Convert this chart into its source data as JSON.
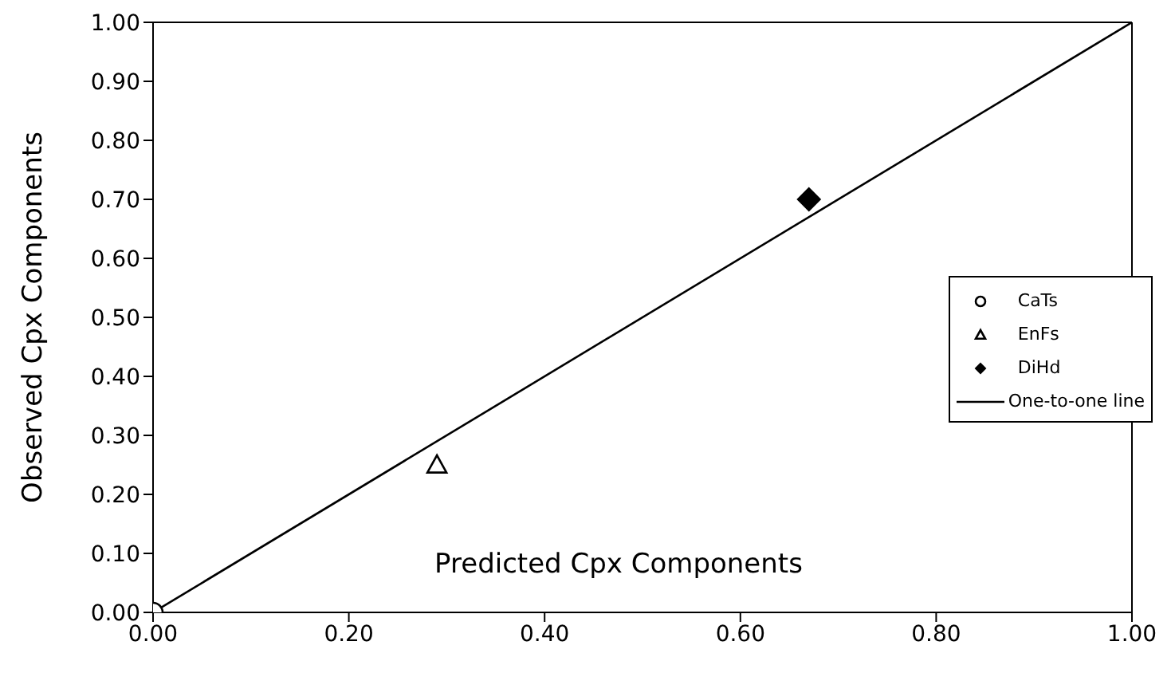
{
  "chart_data": {
    "type": "scatter",
    "xlabel": "Predicted Cpx Components",
    "ylabel": "Observed Cpx Components",
    "xlim": [
      0,
      1
    ],
    "ylim": [
      0,
      1
    ],
    "xticks": [
      {
        "value": 0,
        "label": "0.00"
      },
      {
        "value": 0.2,
        "label": "0.20"
      },
      {
        "value": 0.4,
        "label": "0.40"
      },
      {
        "value": 0.6,
        "label": "0.60"
      },
      {
        "value": 0.8,
        "label": "0.80"
      },
      {
        "value": 1,
        "label": "1.00"
      }
    ],
    "yticks": [
      {
        "value": 0,
        "label": "0.00"
      },
      {
        "value": 0.1,
        "label": "0.10"
      },
      {
        "value": 0.2,
        "label": "0.20"
      },
      {
        "value": 0.3,
        "label": "0.30"
      },
      {
        "value": 0.4,
        "label": "0.40"
      },
      {
        "value": 0.5,
        "label": "0.50"
      },
      {
        "value": 0.6,
        "label": "0.60"
      },
      {
        "value": 0.7,
        "label": "0.70"
      },
      {
        "value": 0.8,
        "label": "0.80"
      },
      {
        "value": 0.9,
        "label": "0.90"
      },
      {
        "value": 1,
        "label": "1.00"
      }
    ],
    "grid": false,
    "legend": "right",
    "series": [
      {
        "name": "CaTs",
        "color": "#000000",
        "marker": "circle",
        "x": [
          0
        ],
        "values": [
          0
        ]
      },
      {
        "name": "EnFs",
        "color": "#000000",
        "marker": "triangle",
        "x": [
          0.29
        ],
        "values": [
          0.25
        ]
      },
      {
        "name": "DiHd",
        "color": "#000000",
        "marker": "diamond",
        "x": [
          0.67
        ],
        "values": [
          0.7
        ]
      },
      {
        "name": "One-to-one line",
        "type": "line",
        "color": "#000000",
        "marker": "none",
        "line_style": "solid",
        "x": [
          0,
          1
        ],
        "values": [
          0,
          1
        ]
      }
    ]
  }
}
